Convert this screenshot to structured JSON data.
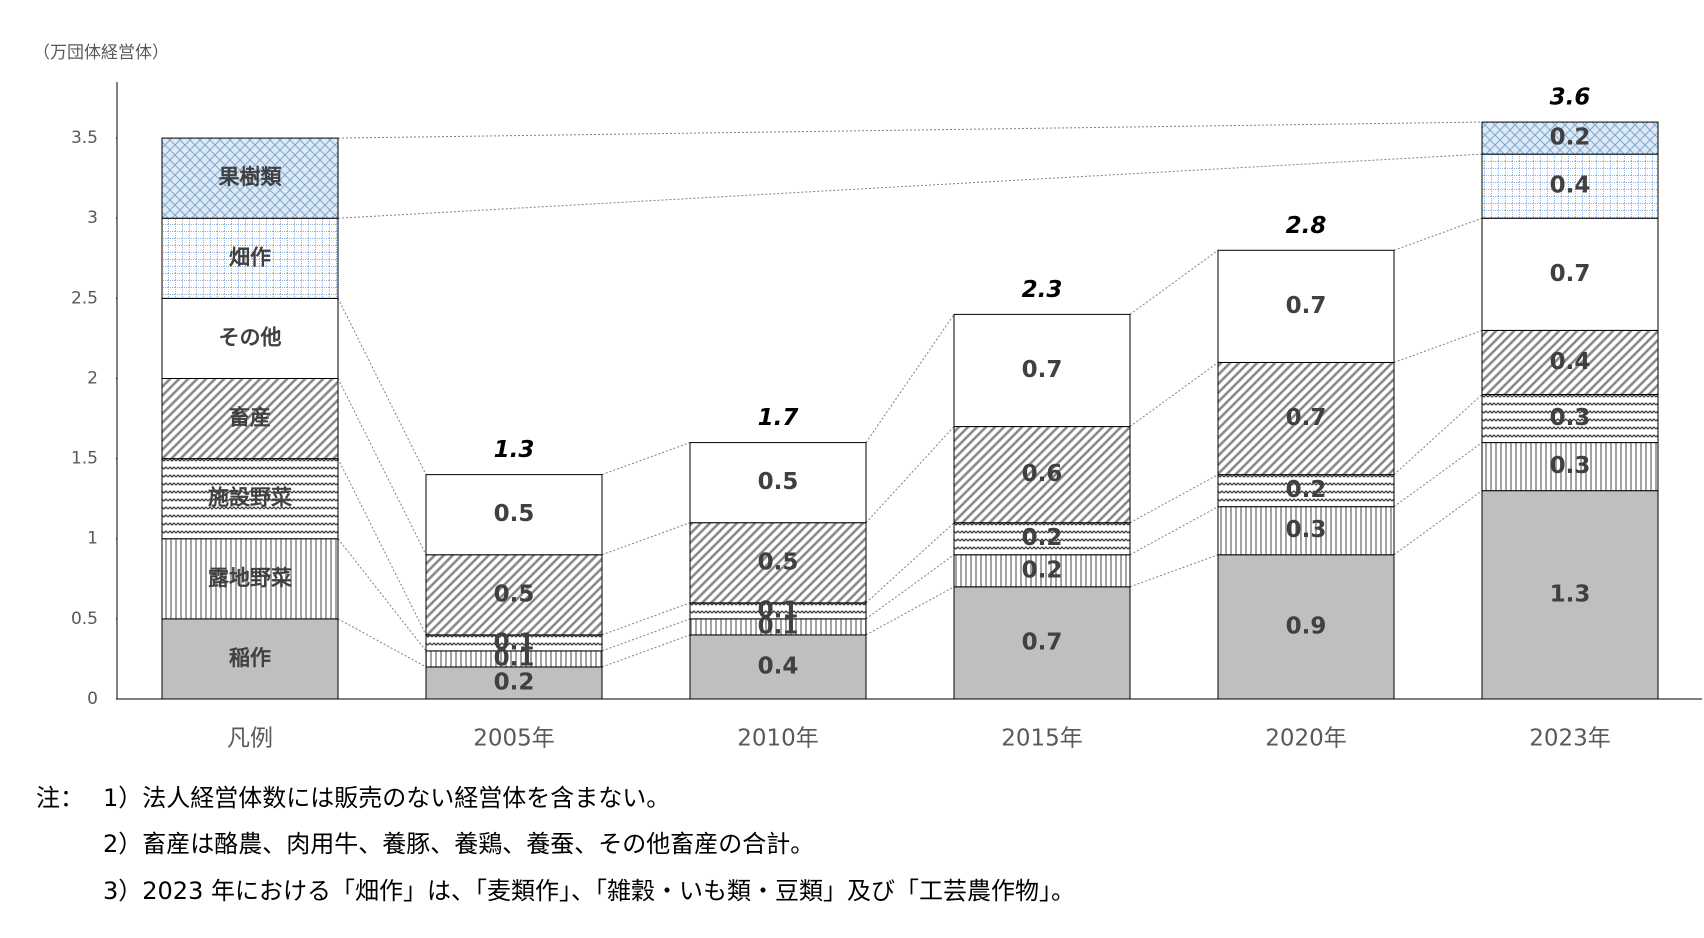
{
  "chart_data": {
    "type": "stacked_bar",
    "y_unit": "（万団体経営体）",
    "categories": [
      "凡例",
      "2005年",
      "2010年",
      "2015年",
      "2020年",
      "2023年"
    ],
    "series": [
      {
        "name": "稲作",
        "color": "#bfbfbf",
        "pattern": "solid",
        "values": [
          0.5,
          0.2,
          0.4,
          0.7,
          0.9,
          1.3
        ]
      },
      {
        "name": "露地野菜",
        "color": "#8c8c8c",
        "pattern": "vertical",
        "values": [
          0.5,
          0.1,
          0.1,
          0.2,
          0.3,
          0.3
        ]
      },
      {
        "name": "施設野菜",
        "color": "#404040",
        "pattern": "zigzag",
        "values": [
          0.5,
          0.1,
          0.1,
          0.2,
          0.2,
          0.3
        ]
      },
      {
        "name": "畜産",
        "color": "#8c8c8c",
        "pattern": "diagonal",
        "values": [
          0.5,
          0.5,
          0.5,
          0.6,
          0.7,
          0.4
        ]
      },
      {
        "name": "その他",
        "color": "#ffffff",
        "pattern": "solid",
        "values": [
          0.5,
          0.5,
          0.5,
          0.7,
          0.7,
          0.7
        ]
      },
      {
        "name": "畑作",
        "color": "#8eb4e3",
        "pattern": "dotgrid",
        "values": [
          0.5,
          null,
          null,
          null,
          null,
          0.4
        ]
      },
      {
        "name": "果樹類",
        "color": "#7fa7d0",
        "pattern": "crosshatch",
        "values": [
          0.5,
          null,
          null,
          null,
          null,
          0.2
        ]
      }
    ],
    "totals": [
      null,
      1.3,
      1.7,
      2.3,
      2.8,
      3.6
    ],
    "ylim": [
      0,
      3.85
    ],
    "yticks": [
      0,
      0.5,
      1,
      1.5,
      2,
      2.5,
      3,
      3.5
    ]
  },
  "notes": {
    "label": "注：",
    "items": [
      "1）法人経営体数には販売のない経営体を含まない。",
      "2）畜産は酪農、肉用牛、養豚、養鶏、養蚕、その他畜産の合計。",
      "3）2023 年における「畑作」は、「麦類作」、「雑穀・いも類・豆類」及び「工芸農作物」。"
    ]
  }
}
